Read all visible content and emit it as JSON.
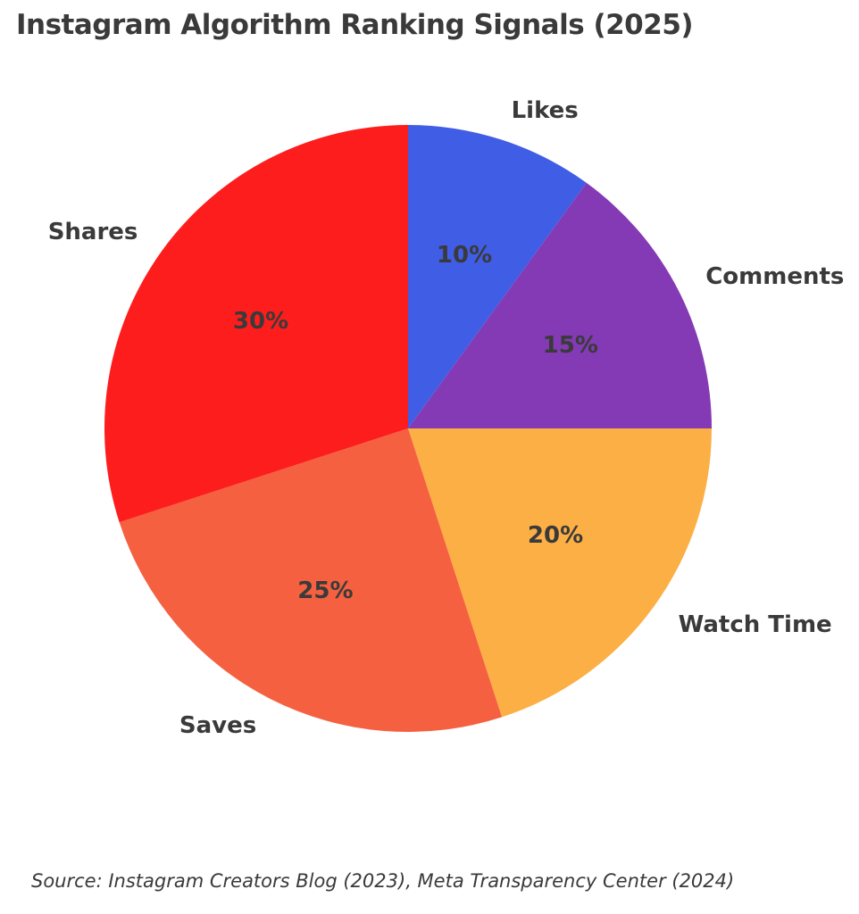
{
  "chart": {
    "title": "Instagram Algorithm Ranking Signals (2025)",
    "source": "Source: Instagram Creators Blog (2023), Meta Transparency Center (2024)"
  },
  "chart_data": {
    "type": "pie",
    "title": "Instagram Algorithm Ranking Signals (2025)",
    "source_note": "Source: Instagram Creators Blog (2023), Meta Transparency Center (2024)",
    "start_angle": "12-o-clock",
    "direction": "clockwise",
    "legend_position": "none",
    "text_color": "#3a3a3a",
    "background_color": "#ffffff",
    "slices": [
      {
        "label": "Likes",
        "value": 10,
        "pct_label": "10%",
        "color": "#405DE6"
      },
      {
        "label": "Comments",
        "value": 15,
        "pct_label": "15%",
        "color": "#833AB4"
      },
      {
        "label": "Watch Time",
        "value": 20,
        "pct_label": "20%",
        "color": "#FCAF45"
      },
      {
        "label": "Saves",
        "value": 25,
        "pct_label": "25%",
        "color": "#F56040"
      },
      {
        "label": "Shares",
        "value": 30,
        "pct_label": "30%",
        "color": "#FD1D1D"
      }
    ],
    "pct_label_distance": 0.6,
    "name_label_distance": 1.1
  }
}
